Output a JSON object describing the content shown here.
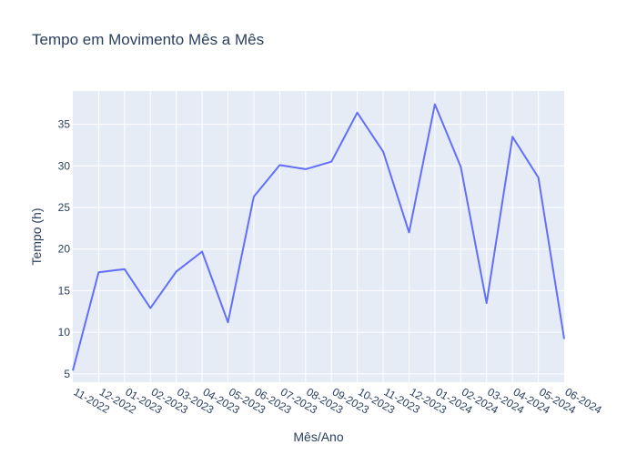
{
  "chart_data": {
    "type": "line",
    "title": "Tempo em Movimento Mês a Mês",
    "xlabel": "Mês/Ano",
    "ylabel": "Tempo (h)",
    "categories": [
      "11-2022",
      "12-2022",
      "01-2023",
      "02-2023",
      "03-2023",
      "04-2023",
      "05-2023",
      "06-2023",
      "07-2023",
      "08-2023",
      "09-2023",
      "10-2023",
      "11-2023",
      "12-2023",
      "01-2024",
      "02-2024",
      "03-2024",
      "04-2024",
      "05-2024",
      "06-2024"
    ],
    "series": [
      {
        "values": [
          5.4,
          17.2,
          17.6,
          12.9,
          17.3,
          19.7,
          11.2,
          26.3,
          30.1,
          29.6,
          30.5,
          36.4,
          31.7,
          22.0,
          37.4,
          29.9,
          13.5,
          33.5,
          28.6,
          9.2
        ],
        "color": "#636efa"
      }
    ],
    "ylim": [
      4,
      39
    ],
    "yticks": [
      5,
      10,
      15,
      20,
      25,
      30,
      35
    ],
    "grid": true,
    "colors": {
      "plot_bg": "#e5ecf6",
      "grid": "#ffffff",
      "text": "#2a3f5f"
    }
  }
}
